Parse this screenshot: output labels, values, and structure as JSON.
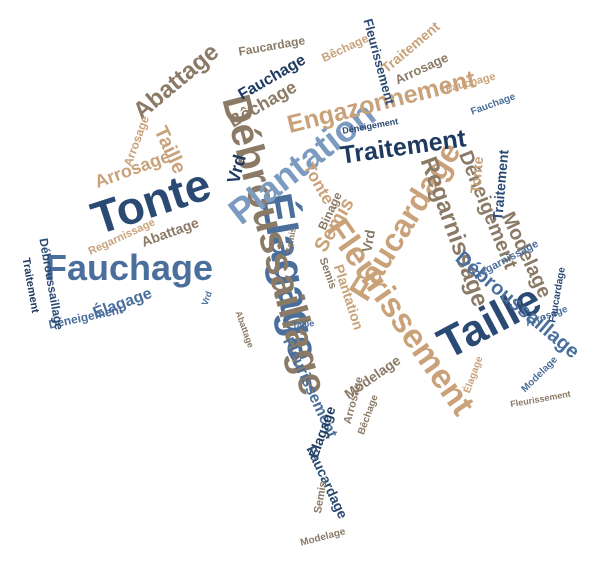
{
  "palette": {
    "navy": "#1f3a5f",
    "blue": "#4a6f9c",
    "tan": "#c9a27a",
    "taupe": "#8a7a66",
    "light_blue": "#7c9bc0",
    "dark_blue": "#2b4a73"
  },
  "words": {
    "tonte": "Tonte",
    "fauchage": "Fauchage",
    "elagage": "Élagage",
    "taille": "Taille",
    "debroussaillage": "Débroussaillage",
    "plantation": "Plantation",
    "fleurissement": "Fleurissement",
    "faucardage": "Faucardage",
    "engazonnement": "Engazonnement",
    "traitement": "Traitement",
    "abattage": "Abattage",
    "bechage": "Bêchage",
    "regarnissage": "Regarnissage",
    "deneigement": "Déneigement",
    "arrosage": "Arrosage",
    "semis": "Semis",
    "vrd": "Vrd",
    "binage": "Binage",
    "modelage": "Modelage"
  }
}
